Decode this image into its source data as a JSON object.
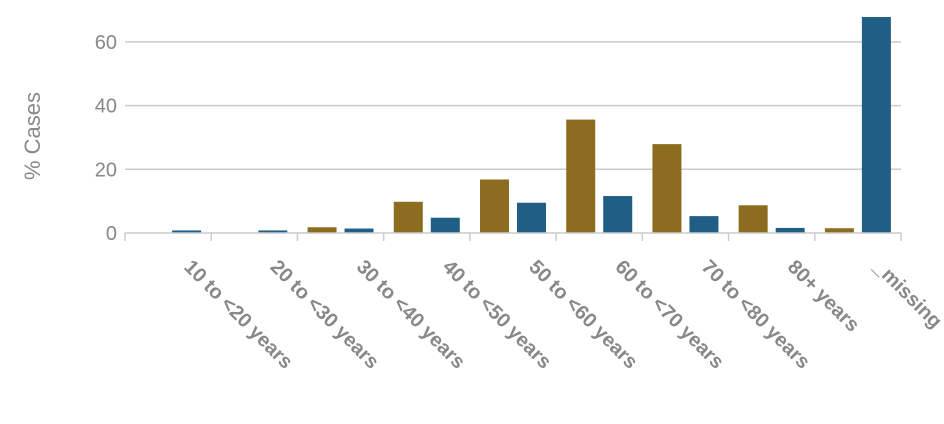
{
  "chart_data": {
    "type": "bar",
    "title": "",
    "xlabel": "",
    "ylabel": "% Cases",
    "ylim": [
      0,
      70
    ],
    "yticks": [
      0,
      20,
      40,
      60
    ],
    "grid": true,
    "categories": [
      "10 to <20 years",
      "20 to <30 years",
      "30 to <40 years",
      "40 to <50 years",
      "50 to <60 years",
      "60 to <70 years",
      "70 to <80 years",
      "80+ years",
      "_missing"
    ],
    "series": [
      {
        "color": "#8c6d1f",
        "values": [
          0,
          0,
          1.8,
          9.8,
          16.8,
          35.6,
          27.9,
          8.7,
          1.5
        ]
      },
      {
        "color": "#1f5f86",
        "values": [
          0.8,
          0.8,
          1.4,
          4.8,
          9.5,
          11.6,
          5.3,
          1.6,
          67.8
        ]
      }
    ]
  }
}
